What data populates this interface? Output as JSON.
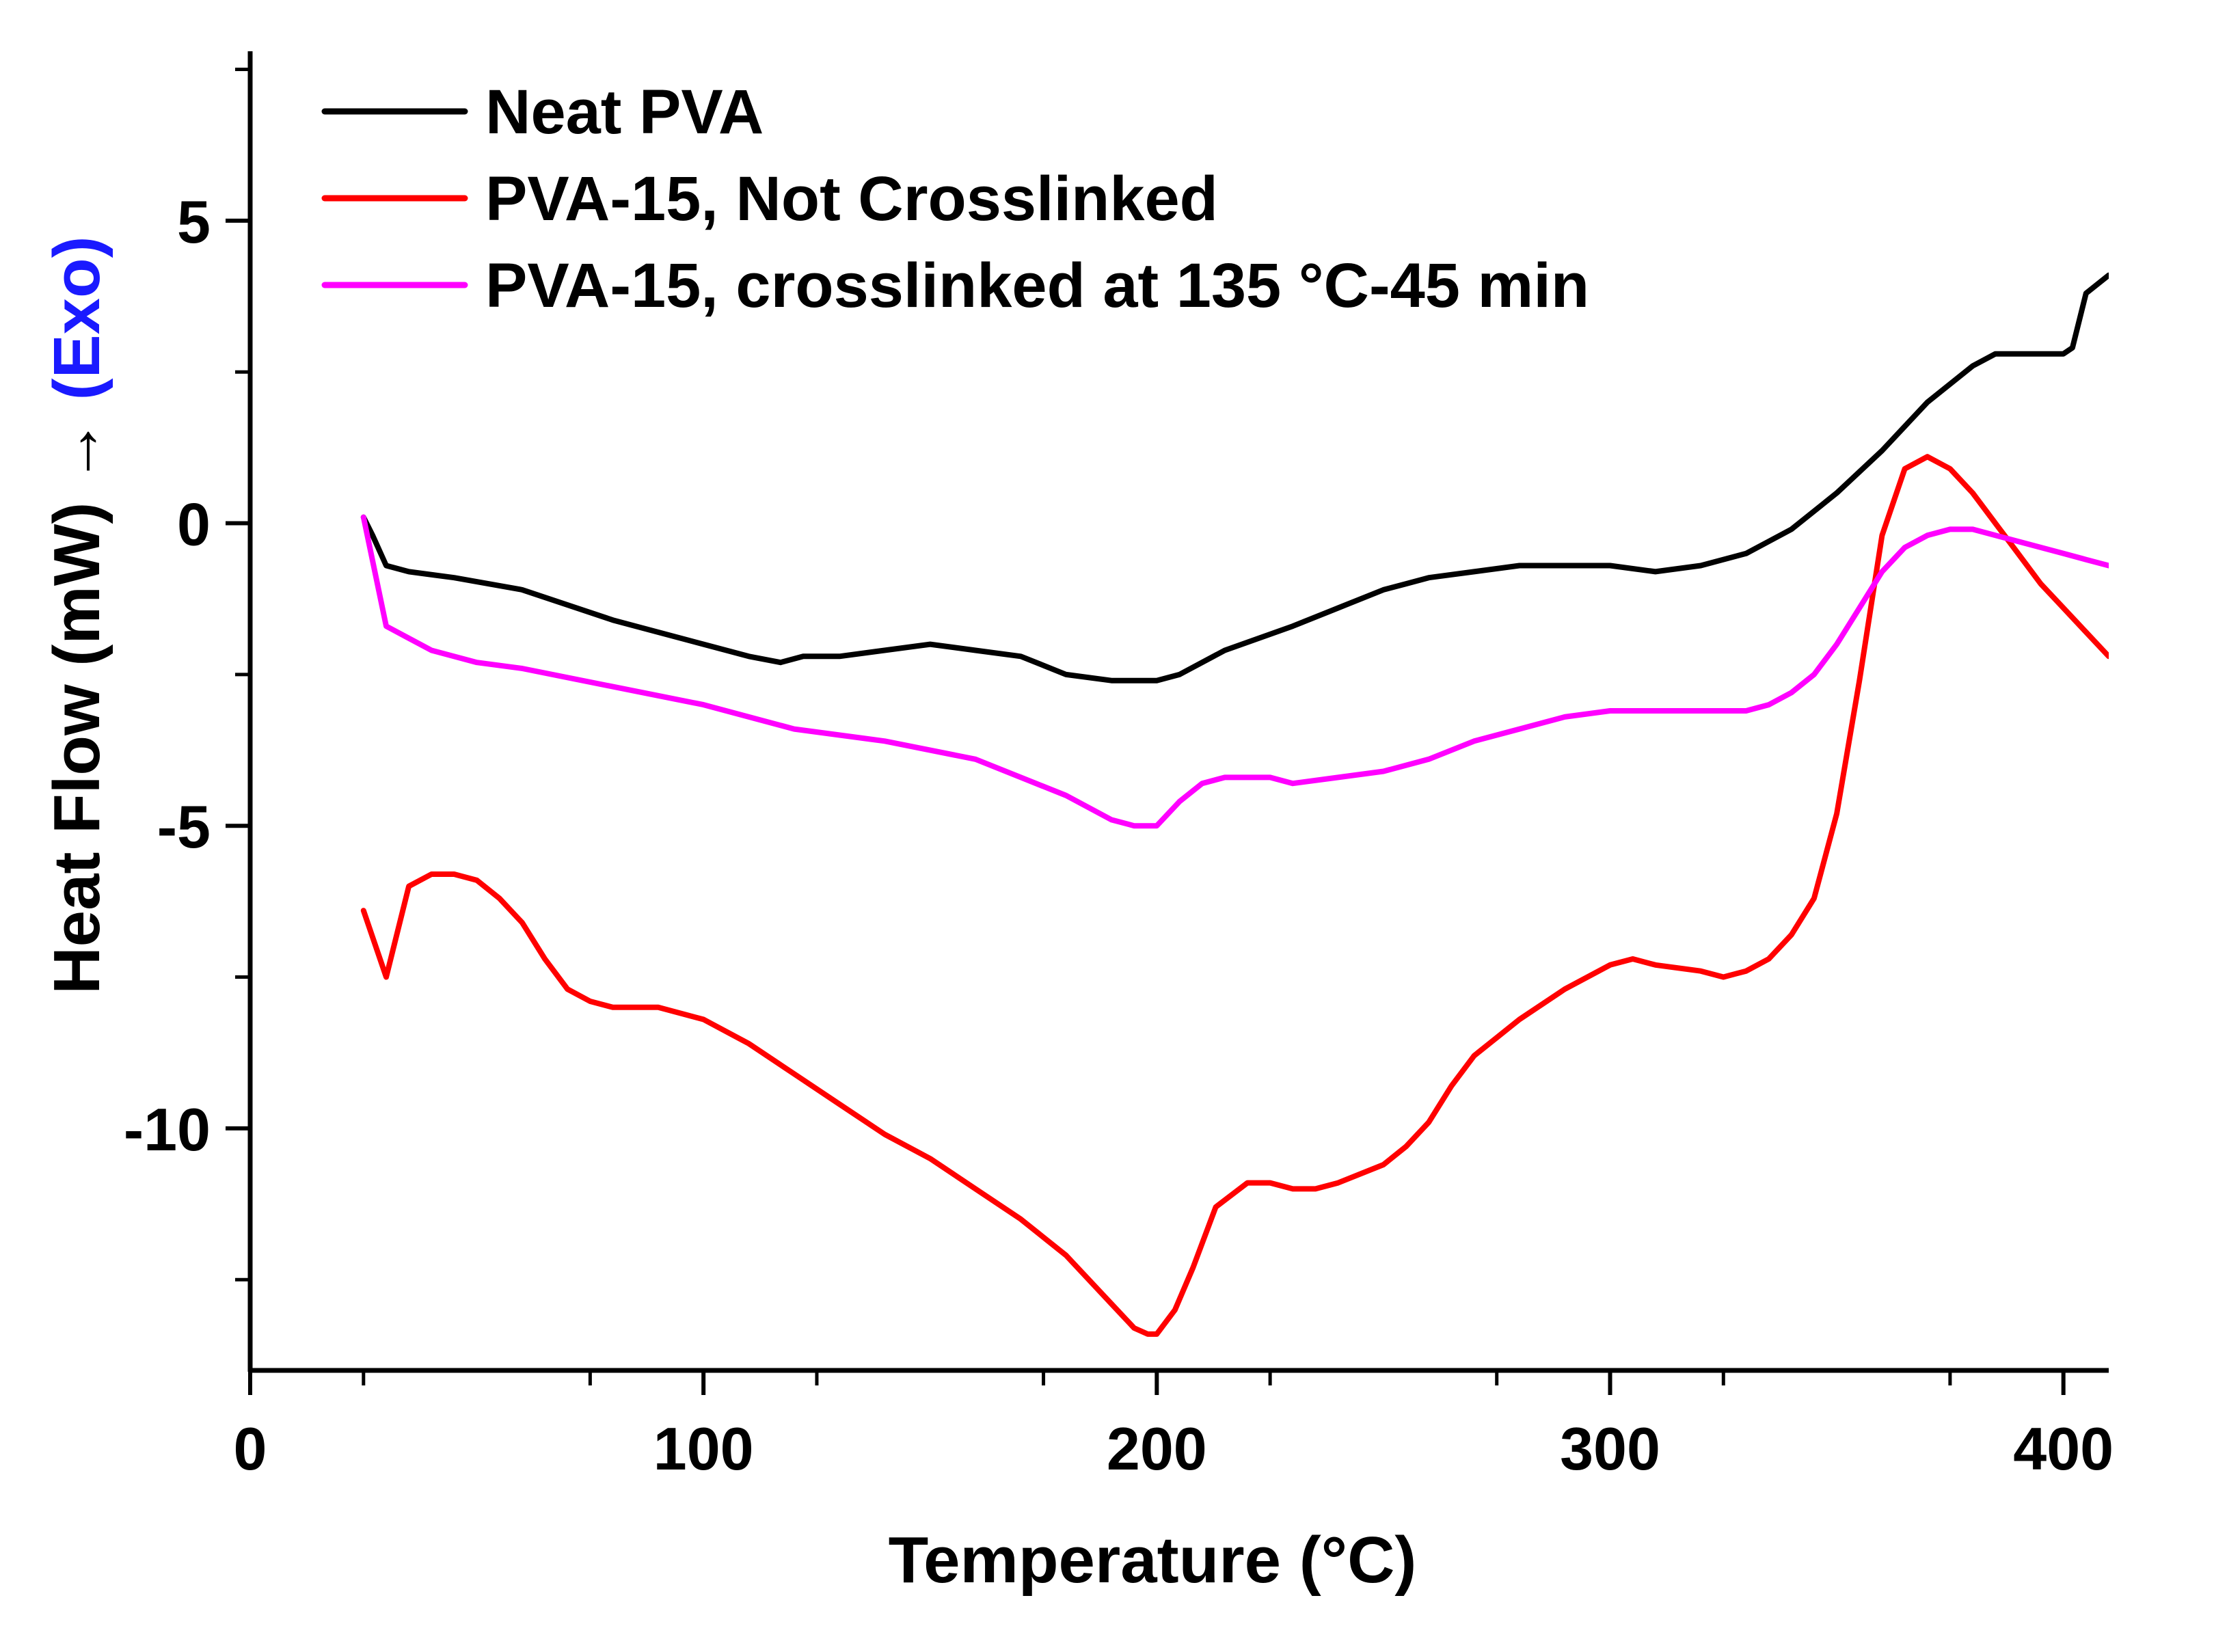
{
  "chart_data": {
    "type": "line",
    "title": "",
    "xlabel": "Temperature (°C)",
    "ylabel": "Heat  Flow (mW) → ",
    "ylabel_suffix": "(Exo)",
    "xlim": [
      0,
      410
    ],
    "ylim": [
      -14.0,
      7.8
    ],
    "x_ticks": [
      0,
      100,
      200,
      300,
      400
    ],
    "x_tick_labels": [
      "0",
      "100",
      "200",
      "300",
      "400"
    ],
    "y_ticks": [
      5,
      0,
      -5,
      -10
    ],
    "y_tick_labels": [
      "5",
      "0",
      "-5",
      "-10"
    ],
    "legend_position": "top-left",
    "grid": false,
    "series": [
      {
        "name": "Neat PVA",
        "color": "#000000",
        "x": [
          25,
          27,
          30,
          35,
          45,
          60,
          80,
          100,
          110,
          117,
          122,
          130,
          150,
          160,
          170,
          180,
          190,
          195,
          200,
          205,
          215,
          230,
          240,
          250,
          255,
          260,
          270,
          280,
          290,
          300,
          310,
          320,
          330,
          335,
          340,
          350,
          360,
          370,
          380,
          385,
          390,
          395,
          400,
          402,
          405,
          410
        ],
        "y": [
          0.1,
          -0.2,
          -0.7,
          -0.8,
          -0.9,
          -1.1,
          -1.6,
          -2.0,
          -2.2,
          -2.3,
          -2.2,
          -2.2,
          -2.0,
          -2.1,
          -2.2,
          -2.5,
          -2.6,
          -2.6,
          -2.6,
          -2.5,
          -2.1,
          -1.7,
          -1.4,
          -1.1,
          -1.0,
          -0.9,
          -0.8,
          -0.7,
          -0.7,
          -0.7,
          -0.8,
          -0.7,
          -0.5,
          -0.3,
          -0.1,
          0.5,
          1.2,
          2.0,
          2.6,
          2.8,
          2.8,
          2.8,
          2.8,
          2.9,
          3.8,
          4.1
        ]
      },
      {
        "name": "PVA-15, Not Crosslinked",
        "color": "#ff0000",
        "x": [
          25,
          30,
          35,
          40,
          45,
          50,
          55,
          60,
          65,
          70,
          75,
          80,
          90,
          100,
          110,
          120,
          130,
          140,
          150,
          160,
          170,
          180,
          190,
          195,
          198,
          200,
          204,
          208,
          213,
          220,
          225,
          230,
          235,
          240,
          250,
          255,
          260,
          265,
          270,
          275,
          280,
          290,
          300,
          305,
          310,
          320,
          325,
          330,
          335,
          340,
          345,
          350,
          355,
          360,
          365,
          370,
          375,
          380,
          385,
          390,
          395,
          400,
          405,
          410
        ],
        "y": [
          -6.4,
          -7.5,
          -6.0,
          -5.8,
          -5.8,
          -5.9,
          -6.2,
          -6.6,
          -7.2,
          -7.7,
          -7.9,
          -8.0,
          -8.0,
          -8.2,
          -8.6,
          -9.1,
          -9.6,
          -10.1,
          -10.5,
          -11.0,
          -11.5,
          -12.1,
          -12.9,
          -13.3,
          -13.4,
          -13.4,
          -13.0,
          -12.3,
          -11.3,
          -10.9,
          -10.9,
          -11.0,
          -11.0,
          -10.9,
          -10.6,
          -10.3,
          -9.9,
          -9.3,
          -8.8,
          -8.5,
          -8.2,
          -7.7,
          -7.3,
          -7.2,
          -7.3,
          -7.4,
          -7.5,
          -7.4,
          -7.2,
          -6.8,
          -6.2,
          -4.8,
          -2.6,
          -0.2,
          0.9,
          1.1,
          0.9,
          0.5,
          0.0,
          -0.5,
          -1.0,
          -1.4,
          -1.8,
          -2.2
        ]
      },
      {
        "name": "PVA-15, crosslinked at 135 °C-45 min",
        "color": "#ff00ff",
        "x": [
          25,
          30,
          35,
          40,
          50,
          60,
          80,
          100,
          120,
          140,
          160,
          180,
          190,
          195,
          200,
          205,
          210,
          215,
          220,
          225,
          230,
          240,
          250,
          260,
          270,
          280,
          290,
          300,
          305,
          310,
          320,
          330,
          335,
          340,
          345,
          350,
          355,
          360,
          365,
          370,
          375,
          380,
          390,
          400,
          405,
          410
        ],
        "y": [
          0.1,
          -1.7,
          -1.9,
          -2.1,
          -2.3,
          -2.4,
          -2.7,
          -3.0,
          -3.4,
          -3.6,
          -3.9,
          -4.5,
          -4.9,
          -5.0,
          -5.0,
          -4.6,
          -4.3,
          -4.2,
          -4.2,
          -4.2,
          -4.3,
          -4.2,
          -4.1,
          -3.9,
          -3.6,
          -3.4,
          -3.2,
          -3.1,
          -3.1,
          -3.1,
          -3.1,
          -3.1,
          -3.0,
          -2.8,
          -2.5,
          -2.0,
          -1.4,
          -0.8,
          -0.4,
          -0.2,
          -0.1,
          -0.1,
          -0.3,
          -0.5,
          -0.6,
          -0.7
        ]
      }
    ]
  }
}
